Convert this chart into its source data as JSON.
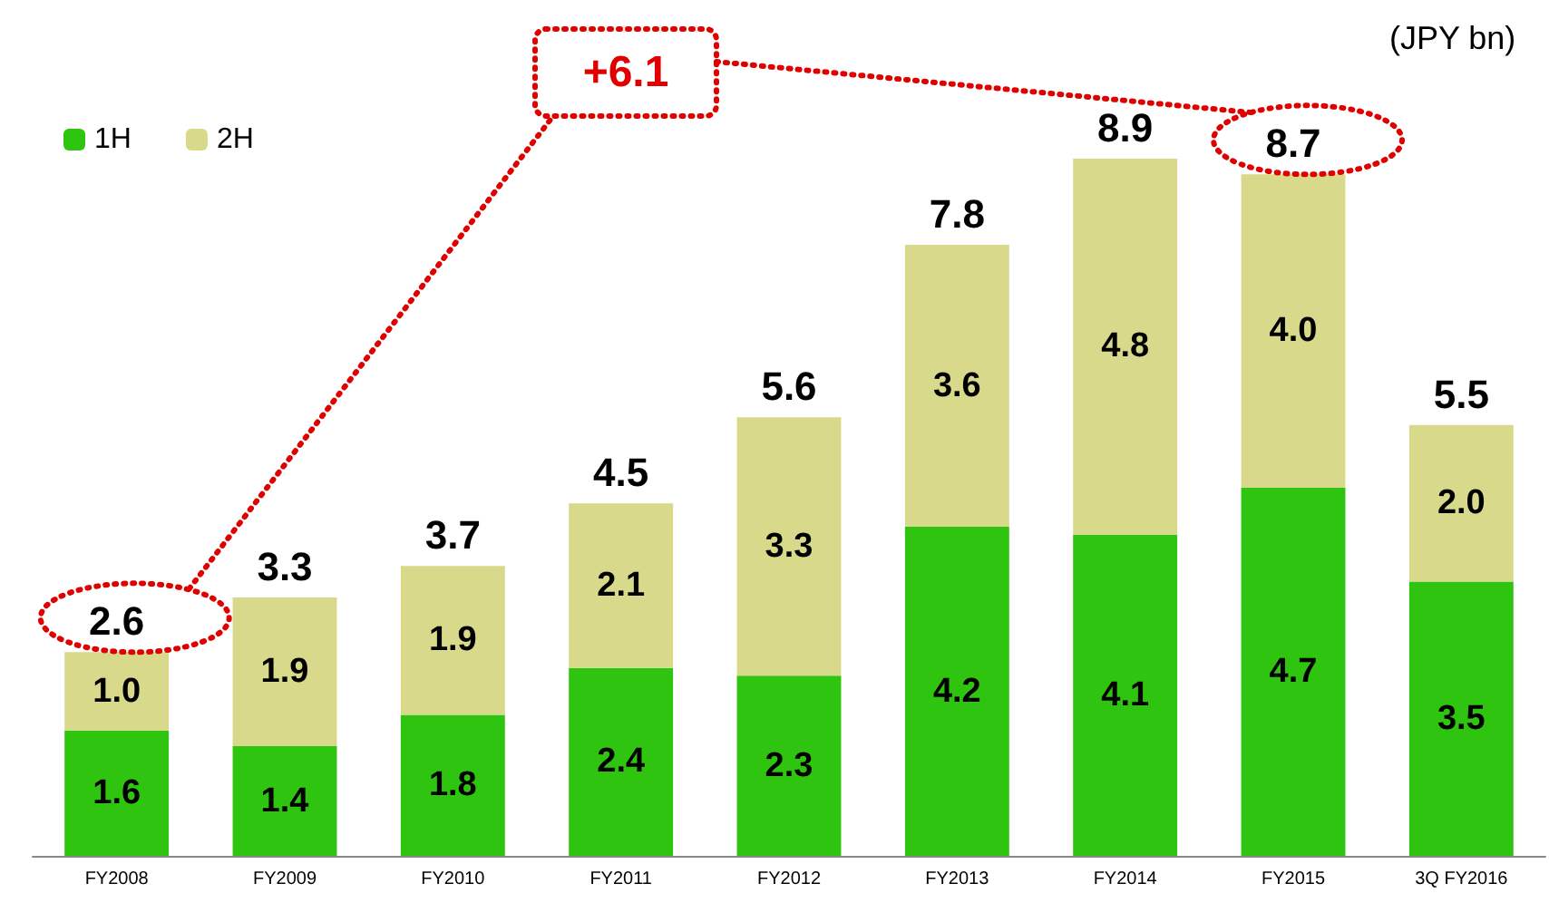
{
  "chart_data": {
    "type": "bar",
    "stacked": true,
    "categories": [
      "FY2008",
      "FY2009",
      "FY2010",
      "FY2011",
      "FY2012",
      "FY2013",
      "FY2014",
      "FY2015",
      "3Q FY2016"
    ],
    "series": [
      {
        "name": "1H",
        "color": "#2fc40f",
        "values": [
          1.6,
          1.4,
          1.8,
          2.4,
          2.3,
          4.2,
          4.1,
          4.7,
          3.5
        ],
        "value_labels": [
          "1.6",
          "1.4",
          "1.8",
          "2.4",
          "2.3",
          "4.2",
          "4.1",
          "4.7",
          "3.5"
        ]
      },
      {
        "name": "2H",
        "color": "#d9d98c",
        "values": [
          1.0,
          1.9,
          1.9,
          2.1,
          3.3,
          3.6,
          4.8,
          4.0,
          2.0
        ],
        "value_labels": [
          "1.0",
          "1.9",
          "1.9",
          "2.1",
          "3.3",
          "3.6",
          "4.8",
          "4.0",
          "2.0"
        ]
      }
    ],
    "totals": [
      "2.6",
      "3.3",
      "3.7",
      "4.5",
      "5.6",
      "7.8",
      "8.9",
      "8.7",
      "5.5"
    ],
    "legend": "top left",
    "annotations": [
      "(JPY bn)",
      "+6.1"
    ]
  }
}
